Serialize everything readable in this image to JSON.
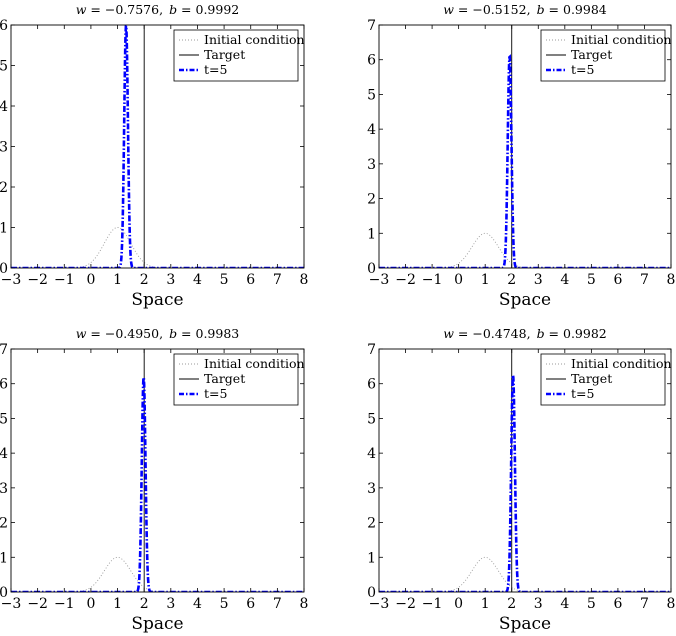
{
  "chart_data": [
    {
      "type": "line",
      "title": {
        "w_label": "w",
        "w_value": "−0.7576,",
        "b_label": "b",
        "b_value": "0.9992"
      },
      "xlabel": "Space",
      "xlim": [
        -3,
        8
      ],
      "ylim": [
        0,
        6
      ],
      "x_ticks": [
        "−3",
        "−2",
        "−1",
        "0",
        "1",
        "2",
        "3",
        "4",
        "5",
        "6",
        "7",
        "8"
      ],
      "y_ticks": [
        "0",
        "1",
        "2",
        "3",
        "4",
        "5",
        "6"
      ],
      "legend": [
        "Initial condition",
        "Target",
        "t=5"
      ],
      "legend_position": "top-right",
      "series": [
        {
          "name": "Initial condition",
          "kind": "gaussian",
          "center": 1.0,
          "peak": 1.0,
          "sigma": 0.5
        },
        {
          "name": "Target",
          "kind": "vline",
          "x": 2.0
        },
        {
          "name": "t=5",
          "kind": "gaussian",
          "center": 1.32,
          "peak": 6.0,
          "sigma": 0.07
        }
      ]
    },
    {
      "type": "line",
      "title": {
        "w_label": "w",
        "w_value": "−0.5152,",
        "b_label": "b",
        "b_value": "0.9984"
      },
      "xlabel": "Space",
      "xlim": [
        -3,
        8
      ],
      "ylim": [
        0,
        7
      ],
      "x_ticks": [
        "−3",
        "−2",
        "−1",
        "0",
        "1",
        "2",
        "3",
        "4",
        "5",
        "6",
        "7",
        "8"
      ],
      "y_ticks": [
        "0",
        "1",
        "2",
        "3",
        "4",
        "5",
        "6",
        "7"
      ],
      "legend": [
        "Initial condition",
        "Target",
        "t=5"
      ],
      "legend_position": "top-right",
      "series": [
        {
          "name": "Initial condition",
          "kind": "gaussian",
          "center": 1.0,
          "peak": 1.0,
          "sigma": 0.5
        },
        {
          "name": "Target",
          "kind": "vline",
          "x": 2.0
        },
        {
          "name": "t=5",
          "kind": "gaussian",
          "center": 1.92,
          "peak": 6.1,
          "sigma": 0.07
        }
      ]
    },
    {
      "type": "line",
      "title": {
        "w_label": "w",
        "w_value": "−0.4950,",
        "b_label": "b",
        "b_value": "0.9983"
      },
      "xlabel": "Space",
      "xlim": [
        -3,
        8
      ],
      "ylim": [
        0,
        7
      ],
      "x_ticks": [
        "−3",
        "−2",
        "−1",
        "0",
        "1",
        "2",
        "3",
        "4",
        "5",
        "6",
        "7",
        "8"
      ],
      "y_ticks": [
        "0",
        "1",
        "2",
        "3",
        "4",
        "5",
        "6",
        "7"
      ],
      "legend": [
        "Initial condition",
        "Target",
        "t=5"
      ],
      "legend_position": "top-right",
      "series": [
        {
          "name": "Initial condition",
          "kind": "gaussian",
          "center": 1.0,
          "peak": 1.0,
          "sigma": 0.5
        },
        {
          "name": "Target",
          "kind": "vline",
          "x": 2.0
        },
        {
          "name": "t=5",
          "kind": "gaussian",
          "center": 1.98,
          "peak": 6.2,
          "sigma": 0.07
        }
      ]
    },
    {
      "type": "line",
      "title": {
        "w_label": "w",
        "w_value": "−0.4748,",
        "b_label": "b",
        "b_value": "0.9982"
      },
      "xlabel": "Space",
      "xlim": [
        -3,
        8
      ],
      "ylim": [
        0,
        7
      ],
      "x_ticks": [
        "−3",
        "−2",
        "−1",
        "0",
        "1",
        "2",
        "3",
        "4",
        "5",
        "6",
        "7",
        "8"
      ],
      "y_ticks": [
        "0",
        "1",
        "2",
        "3",
        "4",
        "5",
        "6",
        "7"
      ],
      "legend": [
        "Initial condition",
        "Target",
        "t=5"
      ],
      "legend_position": "top-right",
      "series": [
        {
          "name": "Initial condition",
          "kind": "gaussian",
          "center": 1.0,
          "peak": 1.0,
          "sigma": 0.5
        },
        {
          "name": "Target",
          "kind": "vline",
          "x": 2.0
        },
        {
          "name": "t=5",
          "kind": "gaussian",
          "center": 2.05,
          "peak": 6.25,
          "sigma": 0.07
        }
      ]
    }
  ],
  "colors": {
    "initial": "#9a9a9a",
    "target": "#000000",
    "t5": "#0000ff"
  }
}
